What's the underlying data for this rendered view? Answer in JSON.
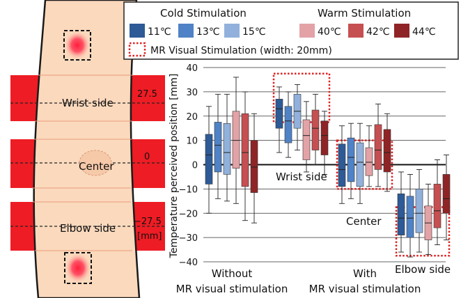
{
  "arm_panel": {
    "labels": {
      "wrist": "Wrist side",
      "center": "Center",
      "elbow": "Elbow side"
    },
    "positions": {
      "wrist": "27.5",
      "center": "0",
      "elbow": "−27.5",
      "unit": "[mm]"
    },
    "colors": {
      "skin": "#fbd9bd",
      "band": "#ee1c24",
      "stim_spot": "#ff1e3c"
    }
  },
  "legend": {
    "cold_title": "Cold Stimulation",
    "warm_title": "Warm Stimulation",
    "items": [
      {
        "label": "11℃",
        "color": "#2e5a96"
      },
      {
        "label": "13℃",
        "color": "#4f82c6"
      },
      {
        "label": "15℃",
        "color": "#91b1dc"
      },
      {
        "label": "40℃",
        "color": "#e3a2a6"
      },
      {
        "label": "42℃",
        "color": "#c64f51"
      },
      {
        "label": "44℃",
        "color": "#8f2426"
      }
    ],
    "mr_label": "MR Visual Stimulation (width: 20mm)",
    "mr_color": "#e02020"
  },
  "chart_data": {
    "type": "box",
    "ylabel": "Temperature perceived position [mm]",
    "ylim": [
      -40,
      40
    ],
    "yticks": [
      "40",
      "30",
      "20",
      "10",
      "0",
      "−10",
      "−20",
      "−30",
      "−40"
    ],
    "groups": [
      {
        "label_line1": "Without",
        "label_line2": "MR visual stimulation"
      },
      {
        "label_line1": "With",
        "label_line2": "MR visual stimulation"
      }
    ],
    "annotations": {
      "wrist": "Wrist side",
      "center": "Center",
      "elbow": "Elbow side"
    },
    "mr_regions": [
      {
        "label": "Wrist side",
        "center": 27.5,
        "width": 20
      },
      {
        "label": "Center",
        "center": 0,
        "width": 20
      },
      {
        "label": "Elbow side",
        "center": -27.5,
        "width": 20
      }
    ],
    "series_names": [
      "11℃",
      "13℃",
      "15℃",
      "40℃",
      "42℃",
      "44℃"
    ],
    "boxes": [
      {
        "group": "Without",
        "series": "11℃",
        "whisker_low": -20,
        "q1": -8,
        "median": 4,
        "q3": 12.5,
        "whisker_high": 24
      },
      {
        "group": "Without",
        "series": "13℃",
        "whisker_low": -14,
        "q1": -3,
        "median": 8,
        "q3": 17.5,
        "whisker_high": 29
      },
      {
        "group": "Without",
        "series": "15℃",
        "whisker_low": -15,
        "q1": -4,
        "median": 5,
        "q3": 17,
        "whisker_high": 29
      },
      {
        "group": "Without",
        "series": "40℃",
        "whisker_low": -16,
        "q1": -1.5,
        "median": 10,
        "q3": 22,
        "whisker_high": 36
      },
      {
        "group": "Without",
        "series": "42℃",
        "whisker_low": -23,
        "q1": -9,
        "median": 5,
        "q3": 21,
        "whisker_high": 30
      },
      {
        "group": "Without",
        "series": "44℃",
        "whisker_low": -24,
        "q1": -11.5,
        "median": -1,
        "q3": 10,
        "whisker_high": 21
      },
      {
        "group": "With:Wrist side",
        "series": "11℃",
        "whisker_low": 5,
        "q1": 15,
        "median": 23,
        "q3": 27,
        "whisker_high": 32
      },
      {
        "group": "With:Wrist side",
        "series": "13℃",
        "whisker_low": 3,
        "q1": 9,
        "median": 18,
        "q3": 24,
        "whisker_high": 30
      },
      {
        "group": "With:Wrist side",
        "series": "15℃",
        "whisker_low": 6,
        "q1": 15,
        "median": 22,
        "q3": 29,
        "whisker_high": 33
      },
      {
        "group": "With:Wrist side",
        "series": "40℃",
        "whisker_low": -3,
        "q1": 2,
        "median": 12,
        "q3": 18.5,
        "whisker_high": 26
      },
      {
        "group": "With:Wrist side",
        "series": "42℃",
        "whisker_low": 0,
        "q1": 6,
        "median": 15,
        "q3": 22.5,
        "whisker_high": 29
      },
      {
        "group": "With:Wrist side",
        "series": "44℃",
        "whisker_low": -4,
        "q1": 4,
        "median": 12,
        "q3": 18,
        "whisker_high": 22
      },
      {
        "group": "With:Center",
        "series": "11℃",
        "whisker_low": -16,
        "q1": -9,
        "median": -2,
        "q3": 8.5,
        "whisker_high": 16
      },
      {
        "group": "With:Center",
        "series": "13℃",
        "whisker_low": -14,
        "q1": -7,
        "median": 3,
        "q3": 11,
        "whisker_high": 17
      },
      {
        "group": "With:Center",
        "series": "15℃",
        "whisker_low": -16,
        "q1": -9,
        "median": 1,
        "q3": 9,
        "whisker_high": 17
      },
      {
        "group": "With:Center",
        "series": "40℃",
        "whisker_low": -9,
        "q1": -4.5,
        "median": 1,
        "q3": 7,
        "whisker_high": 16
      },
      {
        "group": "With:Center",
        "series": "42℃",
        "whisker_low": -9,
        "q1": -2,
        "median": 6,
        "q3": 16.5,
        "whisker_high": 25
      },
      {
        "group": "With:Center",
        "series": "44℃",
        "whisker_low": -11,
        "q1": -3,
        "median": 5,
        "q3": 14.5,
        "whisker_high": 21
      },
      {
        "group": "With:Elbow side",
        "series": "11℃",
        "whisker_low": -36,
        "q1": -29,
        "median": -22,
        "q3": -12,
        "whisker_high": -3
      },
      {
        "group": "With:Elbow side",
        "series": "13℃",
        "whisker_low": -38,
        "q1": -30,
        "median": -22,
        "q3": -13,
        "whisker_high": -4
      },
      {
        "group": "With:Elbow side",
        "series": "15℃",
        "whisker_low": -36,
        "q1": -28,
        "median": -20,
        "q3": -10,
        "whisker_high": -2
      },
      {
        "group": "With:Elbow side",
        "series": "40℃",
        "whisker_low": -37,
        "q1": -31,
        "median": -24,
        "q3": -17,
        "whisker_high": -8
      },
      {
        "group": "With:Elbow side",
        "series": "42℃",
        "whisker_low": -33,
        "q1": -26,
        "median": -19,
        "q3": -8,
        "whisker_high": 2
      },
      {
        "group": "With:Elbow side",
        "series": "44℃",
        "whisker_low": -31,
        "q1": -20,
        "median": -14,
        "q3": -4,
        "whisker_high": 4
      }
    ]
  }
}
